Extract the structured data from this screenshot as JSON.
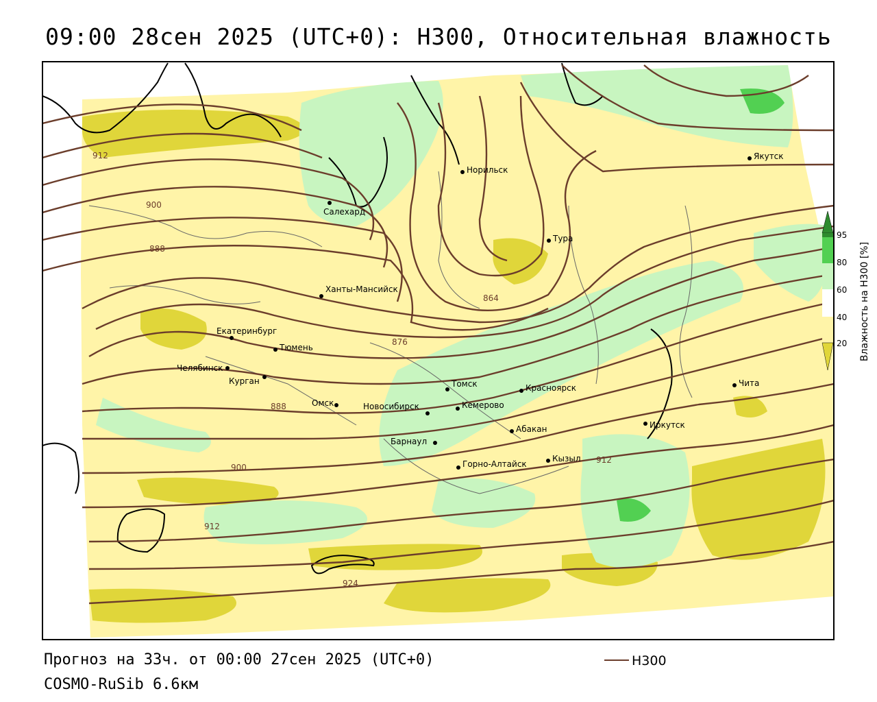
{
  "title": "09:00 28сен 2025 (UTC+0): H300, Относительная влажность",
  "forecast_line": "Прогноз на 33ч. от 00:00 27сен 2025 (UTC+0)",
  "model_line": "COSMO-RuSib 6.6км",
  "legend": {
    "series_label": "H300",
    "line_color": "#6b3d2b"
  },
  "colorbar": {
    "title": "Влажность на H300 [%]",
    "ticks": [
      "95",
      "80",
      "60",
      "40",
      "20"
    ],
    "colors": [
      "#2e8b2e",
      "#52d052",
      "#c8f5c0",
      "#ffffff",
      "#fff4a8",
      "#e0d63a"
    ]
  },
  "cities": [
    {
      "name": "Якутск"
    },
    {
      "name": "Норильск"
    },
    {
      "name": "Салехард"
    },
    {
      "name": "Тура"
    },
    {
      "name": "Ханты-Мансийск"
    },
    {
      "name": "Екатеринбург"
    },
    {
      "name": "Тюмень"
    },
    {
      "name": "Челябинск"
    },
    {
      "name": "Курган"
    },
    {
      "name": "Омск"
    },
    {
      "name": "Новосибирск"
    },
    {
      "name": "Томск"
    },
    {
      "name": "Кемерово"
    },
    {
      "name": "Красноярск"
    },
    {
      "name": "Абакан"
    },
    {
      "name": "Барнаул"
    },
    {
      "name": "Горно-Алтайск"
    },
    {
      "name": "Кызыл"
    },
    {
      "name": "Иркутск"
    },
    {
      "name": "Чита"
    }
  ],
  "contour_labels": [
    "912",
    "900",
    "888",
    "864",
    "876",
    "888",
    "900",
    "912",
    "924",
    "912"
  ]
}
